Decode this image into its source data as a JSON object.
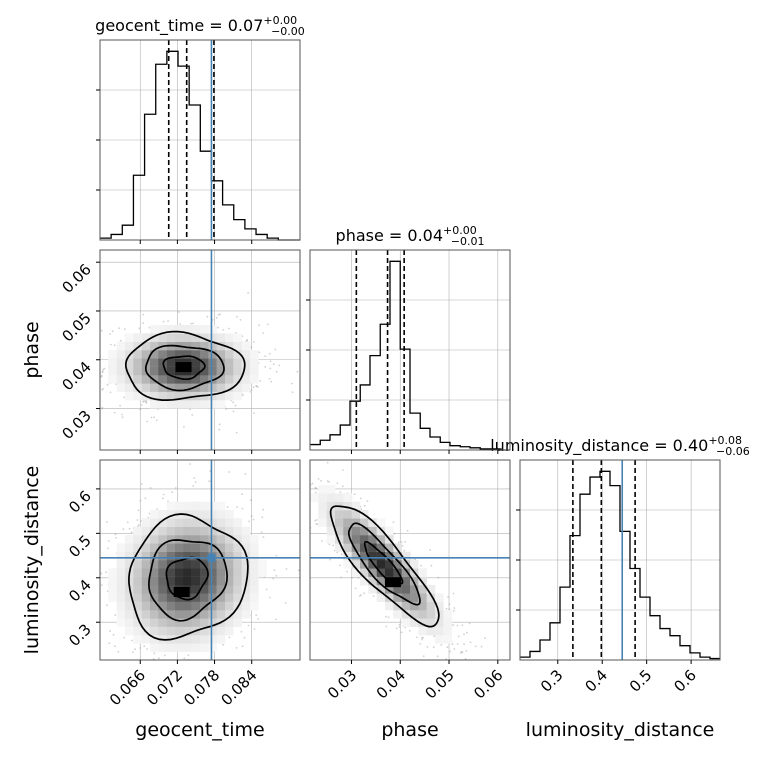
{
  "chart_data": {
    "type": "corner",
    "parameters": [
      "geocent_time",
      "phase",
      "luminosity_distance"
    ],
    "injection": {
      "geocent_time": 0.0775,
      "phase": null,
      "luminosity_distance": 0.445
    },
    "truth_color": "#4682b4",
    "titles": [
      {
        "param": "geocent_time",
        "prefix": "geocent_time = 0.07",
        "plus": "+0.00",
        "minus": "−0.00"
      },
      {
        "param": "phase",
        "prefix": "phase = 0.04",
        "plus": "+0.00",
        "minus": "−0.01"
      },
      {
        "param": "luminosity_distance",
        "prefix": "luminosity_distance = 0.40",
        "plus": "+0.08",
        "minus": "−0.06"
      }
    ],
    "axes": {
      "geocent_time": {
        "label": "geocent_time",
        "range": [
          0.0595,
          0.0918
        ],
        "ticks": [
          0.066,
          0.072,
          0.078,
          0.084
        ],
        "tick_labels": [
          "0.066",
          "0.072",
          "0.078",
          "0.084"
        ]
      },
      "phase": {
        "label": "phase",
        "range": [
          0.0215,
          0.0625
        ],
        "ticks": [
          0.03,
          0.04,
          0.05,
          0.06
        ],
        "tick_labels": [
          "0.03",
          "0.04",
          "0.05",
          "0.06"
        ]
      },
      "luminosity_distance": {
        "label": "luminosity_distance",
        "range": [
          0.215,
          0.665
        ],
        "ticks": [
          0.3,
          0.4,
          0.5,
          0.6
        ],
        "tick_labels": [
          "0.3",
          "0.4",
          "0.5",
          "0.6"
        ]
      }
    },
    "histograms": {
      "geocent_time": {
        "edges": [
          0.0595,
          0.0613,
          0.0631,
          0.0649,
          0.0667,
          0.0685,
          0.0703,
          0.0721,
          0.0739,
          0.0757,
          0.0775,
          0.0793,
          0.0811,
          0.0829,
          0.0847,
          0.0865,
          0.0883,
          0.0901,
          0.0918
        ],
        "counts": [
          1,
          3,
          8,
          35,
          68,
          95,
          102,
          94,
          73,
          48,
          32,
          19,
          11,
          6,
          3,
          1,
          0,
          0
        ],
        "quantiles": [
          0.0706,
          0.0735,
          0.0779
        ]
      },
      "phase": {
        "edges": [
          0.0215,
          0.0236,
          0.0256,
          0.0277,
          0.0297,
          0.0318,
          0.0338,
          0.0359,
          0.0379,
          0.04,
          0.042,
          0.0441,
          0.0461,
          0.0482,
          0.0502,
          0.0523,
          0.0543,
          0.0564,
          0.0584,
          0.0605,
          0.0625
        ],
        "counts": [
          5,
          9,
          14,
          23,
          45,
          60,
          87,
          116,
          174,
          93,
          34,
          20,
          12,
          7,
          4,
          3,
          2,
          1,
          1,
          0
        ],
        "quantiles": [
          0.031,
          0.0374,
          0.0408
        ]
      },
      "luminosity_distance": {
        "edges": [
          0.215,
          0.2375,
          0.26,
          0.2825,
          0.305,
          0.3275,
          0.35,
          0.3725,
          0.395,
          0.4175,
          0.44,
          0.4625,
          0.485,
          0.5075,
          0.53,
          0.5525,
          0.575,
          0.5975,
          0.62,
          0.6425,
          0.665
        ],
        "counts": [
          2,
          6,
          14,
          26,
          51,
          87,
          116,
          128,
          132,
          122,
          90,
          64,
          44,
          31,
          22,
          17,
          10,
          5,
          2,
          1
        ],
        "quantiles": [
          0.334,
          0.398,
          0.474
        ]
      }
    },
    "joint": [
      {
        "x": "geocent_time",
        "y": "phase",
        "center": [
          0.073,
          0.0385
        ],
        "peak": [
          0.073,
          0.0385
        ],
        "cov": [
          [
            3e-05,
            -2e-07
          ],
          [
            -2e-07,
            1.5e-05
          ]
        ]
      },
      {
        "x": "geocent_time",
        "y": "luminosity_distance",
        "center": [
          0.0735,
          0.4
        ],
        "peak": [
          0.0727,
          0.368
        ],
        "cov": [
          [
            3e-05,
            4e-05
          ],
          [
            4e-05,
            0.006
          ]
        ]
      },
      {
        "x": "phase",
        "y": "luminosity_distance",
        "center": [
          0.0365,
          0.43
        ],
        "peak": [
          0.0385,
          0.39
        ],
        "cov": [
          [
            4e-05,
            -0.00042
          ],
          [
            -0.00042,
            0.006
          ]
        ]
      }
    ]
  }
}
